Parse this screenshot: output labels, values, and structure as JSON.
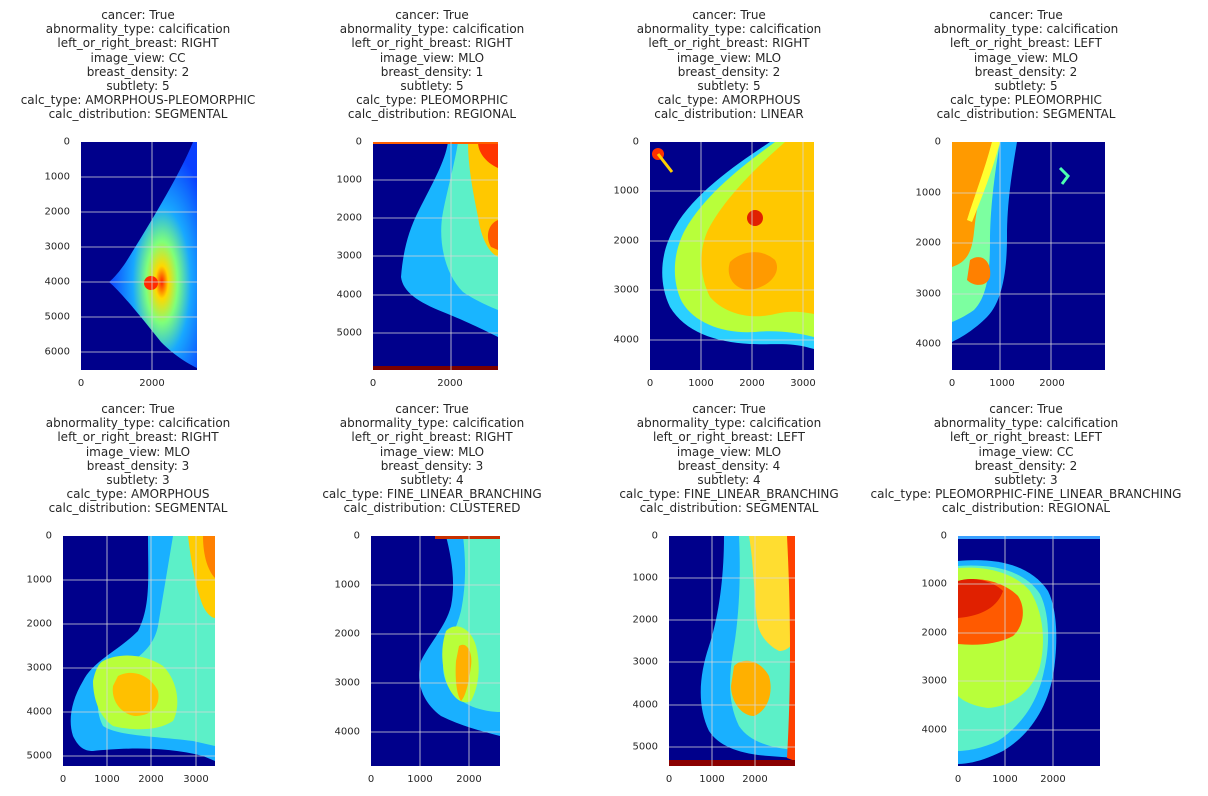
{
  "figure": {
    "panels": [
      {
        "title_lines": [
          "cancer: True",
          "abnormality_type: calcification",
          "left_or_right_breast: RIGHT",
          "image_view: CC",
          "breast_density: 2",
          "subtlety: 5",
          "calc_type: AMORPHOUS-PLEOMORPHIC",
          "calc_distribution: SEGMENTAL"
        ],
        "yticks": [
          "0",
          "1000",
          "2000",
          "3000",
          "4000",
          "5000",
          "6000"
        ],
        "xticks": [
          "0",
          "2000"
        ]
      },
      {
        "title_lines": [
          "cancer: True",
          "abnormality_type: calcification",
          "left_or_right_breast: RIGHT",
          "image_view: MLO",
          "breast_density: 1",
          "subtlety: 5",
          "calc_type: PLEOMORPHIC",
          "calc_distribution: REGIONAL"
        ],
        "yticks": [
          "0",
          "1000",
          "2000",
          "3000",
          "4000",
          "5000"
        ],
        "xticks": [
          "0",
          "2000"
        ]
      },
      {
        "title_lines": [
          "cancer: True",
          "abnormality_type: calcification",
          "left_or_right_breast: RIGHT",
          "image_view: MLO",
          "breast_density: 2",
          "subtlety: 5",
          "calc_type: AMORPHOUS",
          "calc_distribution: LINEAR"
        ],
        "yticks": [
          "0",
          "1000",
          "2000",
          "3000",
          "4000"
        ],
        "xticks": [
          "0",
          "1000",
          "2000",
          "3000"
        ]
      },
      {
        "title_lines": [
          "cancer: True",
          "abnormality_type: calcification",
          "left_or_right_breast: LEFT",
          "image_view: MLO",
          "breast_density: 2",
          "subtlety: 5",
          "calc_type: PLEOMORPHIC",
          "calc_distribution: SEGMENTAL"
        ],
        "yticks": [
          "0",
          "1000",
          "2000",
          "3000",
          "4000"
        ],
        "xticks": [
          "0",
          "1000",
          "2000"
        ]
      },
      {
        "title_lines": [
          "cancer: True",
          "abnormality_type: calcification",
          "left_or_right_breast: RIGHT",
          "image_view: MLO",
          "breast_density: 3",
          "subtlety: 3",
          "calc_type: AMORPHOUS",
          "calc_distribution: SEGMENTAL"
        ],
        "yticks": [
          "0",
          "1000",
          "2000",
          "3000",
          "4000",
          "5000"
        ],
        "xticks": [
          "0",
          "1000",
          "2000",
          "3000"
        ]
      },
      {
        "title_lines": [
          "cancer: True",
          "abnormality_type: calcification",
          "left_or_right_breast: RIGHT",
          "image_view: MLO",
          "breast_density: 3",
          "subtlety: 4",
          "calc_type: FINE_LINEAR_BRANCHING",
          "calc_distribution: CLUSTERED"
        ],
        "yticks": [
          "0",
          "1000",
          "2000",
          "3000",
          "4000"
        ],
        "xticks": [
          "0",
          "1000",
          "2000"
        ]
      },
      {
        "title_lines": [
          "cancer: True",
          "abnormality_type: calcification",
          "left_or_right_breast: LEFT",
          "image_view: MLO",
          "breast_density: 4",
          "subtlety: 4",
          "calc_type: FINE_LINEAR_BRANCHING",
          "calc_distribution: SEGMENTAL"
        ],
        "yticks": [
          "0",
          "1000",
          "2000",
          "3000",
          "4000",
          "5000"
        ],
        "xticks": [
          "0",
          "1000",
          "2000"
        ]
      },
      {
        "title_lines": [
          "cancer: True",
          "abnormality_type: calcification",
          "left_or_right_breast: LEFT",
          "image_view: CC",
          "breast_density: 2",
          "subtlety: 3",
          "calc_type: PLEOMORPHIC-FINE_LINEAR_BRANCHING",
          "calc_distribution: REGIONAL"
        ],
        "yticks": [
          "0",
          "1000",
          "2000",
          "3000",
          "4000"
        ],
        "xticks": [
          "0",
          "1000",
          "2000"
        ]
      }
    ]
  }
}
